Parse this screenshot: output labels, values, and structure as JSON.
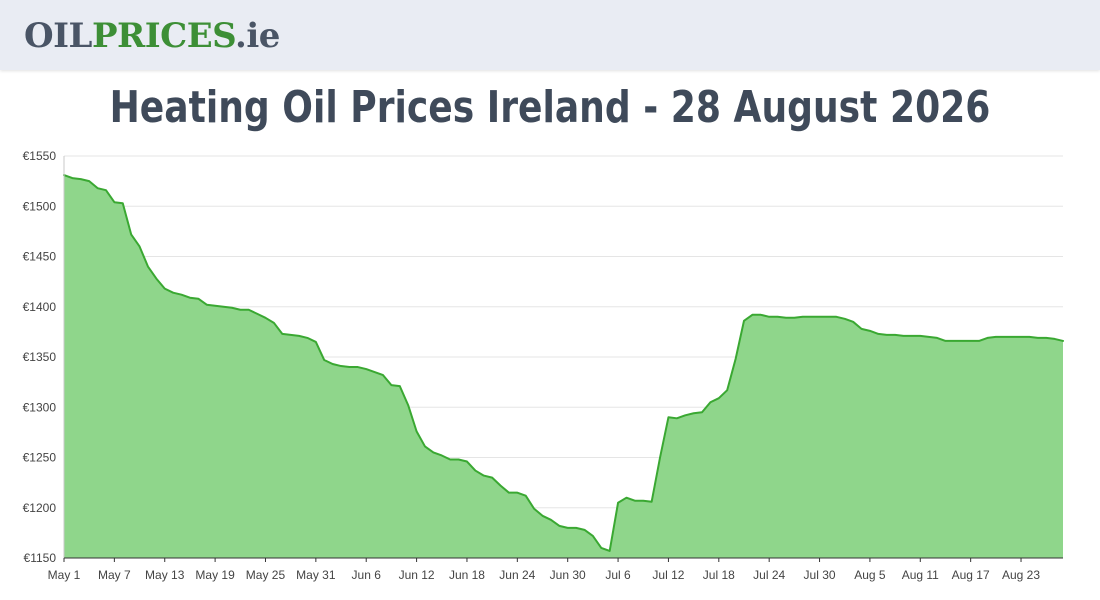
{
  "header": {
    "logo_oil": "OIL",
    "logo_prices": "PRICES",
    "logo_tld": ".ie"
  },
  "page_title": "Heating Oil Prices Ireland - 28 August 2026",
  "colors": {
    "line": "#3aa832",
    "fill": "#8fd68b",
    "grid": "#e5e5e5",
    "header_bg": "#e9ecf3"
  },
  "chart_data": {
    "type": "area",
    "title": "",
    "xlabel": "",
    "ylabel": "",
    "ylim": [
      1150,
      1550
    ],
    "y_ticks": [
      "€1150",
      "€1200",
      "€1250",
      "€1300",
      "€1350",
      "€1400",
      "€1450",
      "€1500",
      "€1550"
    ],
    "y_tick_values": [
      1150,
      1200,
      1250,
      1300,
      1350,
      1400,
      1450,
      1500,
      1550
    ],
    "x_ticks": [
      "May 1",
      "May 7",
      "May 13",
      "May 19",
      "May 25",
      "May 31",
      "Jun 6",
      "Jun 12",
      "Jun 18",
      "Jun 24",
      "Jun 30",
      "Jul 6",
      "Jul 12",
      "Jul 18",
      "Jul 24",
      "Jul 30",
      "Aug 5",
      "Aug 11",
      "Aug 17",
      "Aug 23"
    ],
    "x_tick_days": [
      0,
      6,
      12,
      18,
      24,
      30,
      36,
      42,
      48,
      54,
      60,
      66,
      72,
      78,
      84,
      90,
      96,
      102,
      108,
      114
    ],
    "grid": true,
    "legend": "none",
    "series": [
      {
        "name": "",
        "x": [
          0,
          1,
          2,
          3,
          4,
          5,
          6,
          7,
          8,
          9,
          10,
          11,
          12,
          13,
          14,
          15,
          16,
          17,
          18,
          19,
          20,
          21,
          22,
          23,
          24,
          25,
          26,
          27,
          28,
          29,
          30,
          31,
          32,
          33,
          34,
          35,
          36,
          37,
          38,
          39,
          40,
          41,
          42,
          43,
          44,
          45,
          46,
          47,
          48,
          49,
          50,
          51,
          52,
          53,
          54,
          55,
          56,
          57,
          58,
          59,
          60,
          61,
          62,
          63,
          64,
          65,
          66,
          67,
          68,
          69,
          70,
          71,
          72,
          73,
          74,
          75,
          76,
          77,
          78,
          79,
          80,
          81,
          82,
          83,
          84,
          85,
          86,
          87,
          88,
          89,
          90,
          91,
          92,
          93,
          94,
          95,
          96,
          97,
          98,
          99,
          100,
          101,
          102,
          103,
          104,
          105,
          106,
          107,
          108,
          109,
          110,
          111,
          112,
          113,
          114,
          115,
          116,
          117,
          118,
          119
        ],
        "values": [
          1531,
          1528,
          1527,
          1525,
          1518,
          1516,
          1504,
          1503,
          1472,
          1460,
          1440,
          1428,
          1418,
          1414,
          1412,
          1409,
          1408,
          1402,
          1401,
          1400,
          1399,
          1397,
          1397,
          1393,
          1389,
          1384,
          1373,
          1372,
          1371,
          1369,
          1365,
          1347,
          1343,
          1341,
          1340,
          1340,
          1338,
          1335,
          1332,
          1322,
          1321,
          1302,
          1276,
          1261,
          1255,
          1252,
          1248,
          1248,
          1246,
          1237,
          1232,
          1230,
          1222,
          1215,
          1215,
          1212,
          1199,
          1192,
          1188,
          1182,
          1180,
          1180,
          1178,
          1172,
          1160,
          1157,
          1205,
          1210,
          1207,
          1207,
          1206,
          1250,
          1290,
          1289,
          1292,
          1294,
          1295,
          1305,
          1309,
          1317,
          1348,
          1386,
          1392,
          1392,
          1390,
          1390,
          1389,
          1389,
          1390,
          1390,
          1390,
          1390,
          1390,
          1388,
          1385,
          1378,
          1376,
          1373,
          1372,
          1372,
          1371,
          1371,
          1371,
          1370,
          1369,
          1366,
          1366,
          1366,
          1366,
          1366,
          1369,
          1370,
          1370,
          1370,
          1370,
          1370,
          1369,
          1369,
          1368,
          1366
        ]
      }
    ]
  }
}
